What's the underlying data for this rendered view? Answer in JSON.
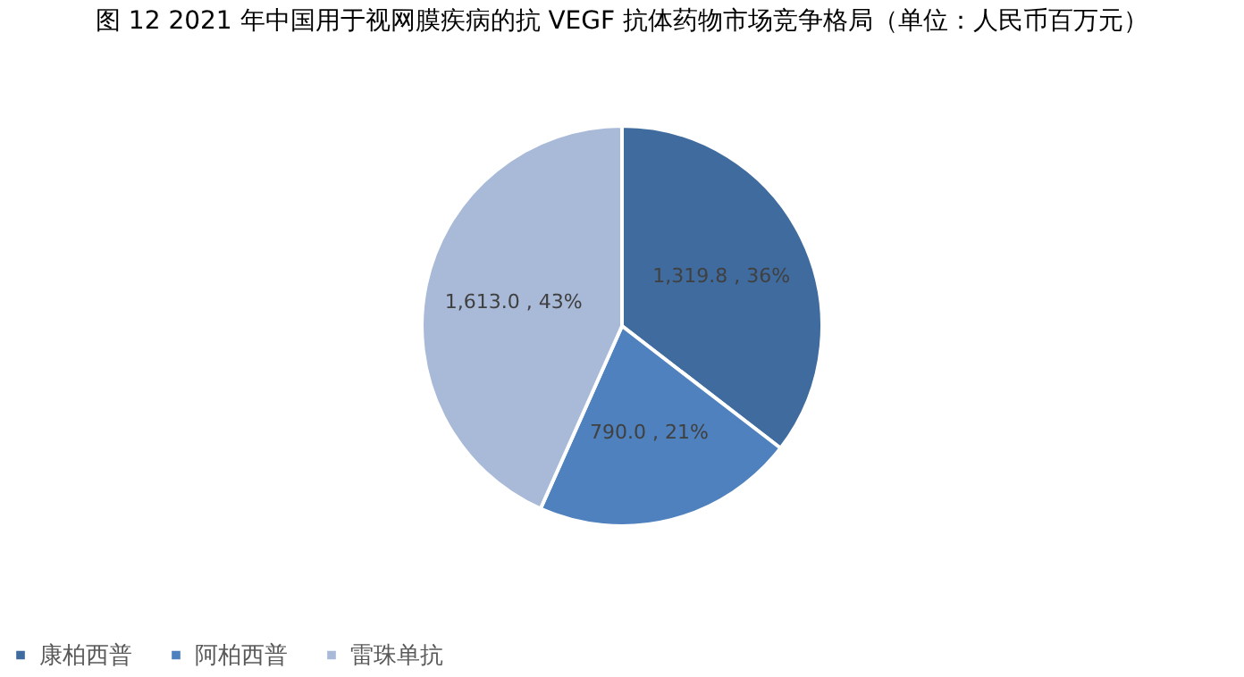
{
  "chart_data": {
    "type": "pie",
    "title": "图  12 2021 年中国用于视网膜疾病的抗 VEGF 抗体药物市场竞争格局（单位：人民币百万元）",
    "categories": [
      "康柏西普",
      "阿柏西普",
      "雷珠单抗"
    ],
    "values": [
      1319.8,
      790.0,
      1613.0
    ],
    "colors": [
      "#3f6b9e",
      "#4e81bd",
      "#a9b9d8"
    ],
    "value_labels": [
      "1,319.8 , 36%",
      "790.0 , 21%",
      "1,613.0 , 43%"
    ],
    "legend": "bottom"
  }
}
